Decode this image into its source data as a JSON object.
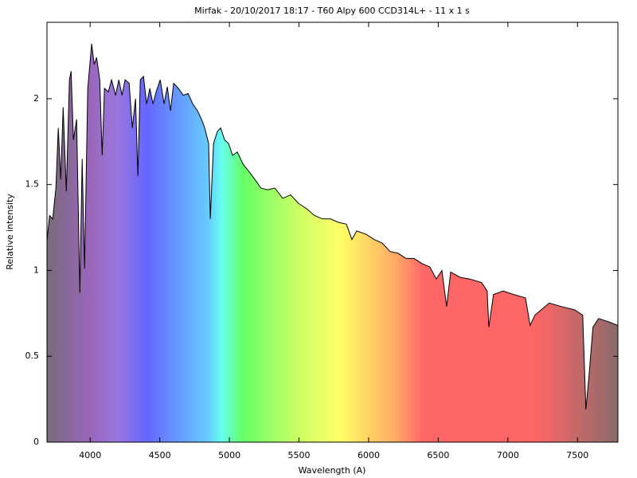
{
  "chart_data": {
    "type": "area",
    "title": "Mirfak - 20/10/2017 18:17 - T60 Alpy 600 CCD314L+ - 11 x 1 s",
    "x_label": "Wavelength (A)",
    "y_label": "Relative intensity",
    "color": "#000000",
    "x": [
      3691,
      3709,
      3731,
      3754,
      3771,
      3789,
      3806,
      3829,
      3851,
      3863,
      3880,
      3903,
      3926,
      3943,
      3960,
      3983,
      4011,
      4029,
      4046,
      4069,
      4086,
      4103,
      4131,
      4154,
      4183,
      4206,
      4229,
      4251,
      4280,
      4303,
      4326,
      4343,
      4360,
      4383,
      4406,
      4429,
      4451,
      4474,
      4503,
      4531,
      4554,
      4577,
      4600,
      4634,
      4669,
      4703,
      4737,
      4771,
      4800,
      4823,
      4851,
      4863,
      4886,
      4914,
      4937,
      4966,
      4994,
      5023,
      5057,
      5097,
      5137,
      5183,
      5226,
      5274,
      5326,
      5383,
      5440,
      5497,
      5554,
      5611,
      5669,
      5726,
      5783,
      5840,
      5880,
      5914,
      5983,
      6040,
      6097,
      6154,
      6211,
      6269,
      6326,
      6383,
      6440,
      6486,
      6526,
      6560,
      6589,
      6657,
      6726,
      6811,
      6851,
      6863,
      6897,
      6966,
      7040,
      7126,
      7160,
      7194,
      7297,
      7383,
      7480,
      7537,
      7560,
      7583,
      7611,
      7651,
      7726,
      7789
    ],
    "values": [
      1.18,
      1.32,
      1.3,
      1.48,
      1.83,
      1.53,
      1.95,
      1.46,
      2.11,
      2.16,
      1.76,
      1.88,
      0.87,
      1.65,
      1.01,
      2.06,
      2.32,
      2.2,
      2.24,
      2.11,
      1.67,
      2.06,
      2.04,
      2.11,
      2.02,
      2.11,
      2.02,
      2.11,
      2.09,
      1.83,
      2.0,
      1.55,
      2.11,
      2.13,
      1.97,
      2.06,
      1.97,
      2.04,
      2.11,
      1.97,
      2.07,
      1.93,
      2.09,
      2.06,
      2.02,
      2.03,
      1.97,
      1.93,
      1.88,
      1.83,
      1.74,
      1.3,
      1.74,
      1.81,
      1.83,
      1.76,
      1.74,
      1.67,
      1.69,
      1.62,
      1.58,
      1.53,
      1.48,
      1.47,
      1.48,
      1.42,
      1.44,
      1.39,
      1.36,
      1.32,
      1.3,
      1.3,
      1.28,
      1.27,
      1.18,
      1.23,
      1.21,
      1.18,
      1.16,
      1.11,
      1.1,
      1.07,
      1.07,
      1.04,
      1.02,
      0.95,
      1.0,
      0.79,
      0.99,
      0.96,
      0.95,
      0.93,
      0.88,
      0.67,
      0.86,
      0.88,
      0.86,
      0.84,
      0.68,
      0.74,
      0.81,
      0.79,
      0.77,
      0.74,
      0.19,
      0.39,
      0.67,
      0.72,
      0.7,
      0.68
    ],
    "xlim": [
      3690,
      7790
    ],
    "ylim": [
      0,
      2.445
    ],
    "xticks": [
      4000,
      4500,
      5000,
      5500,
      6000,
      6500,
      7000,
      7500
    ],
    "yticks": [
      0,
      0.5,
      1,
      1.5,
      2
    ]
  }
}
